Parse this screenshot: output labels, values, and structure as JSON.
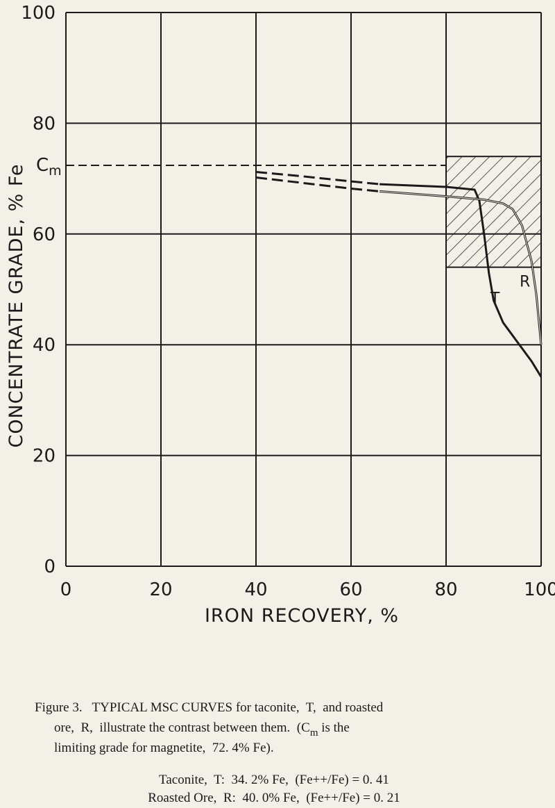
{
  "chart_data": {
    "type": "line",
    "x_label": "IRON RECOVERY, %",
    "y_label": "CONCENTRATE GRADE, % Fe",
    "xlim": [
      0,
      100
    ],
    "ylim": [
      0,
      100
    ],
    "xticks": [
      0,
      20,
      40,
      60,
      80,
      100
    ],
    "yticks": [
      0,
      20,
      40,
      60,
      80,
      100
    ],
    "grid": true,
    "color": "#1a1a1a",
    "cm_line": {
      "label": "C",
      "label_sub": "m",
      "value": 72.4,
      "x": [
        0,
        80
      ]
    },
    "hatched_region": {
      "x": [
        80,
        100
      ],
      "y": [
        54,
        74
      ]
    },
    "series": [
      {
        "label": "T",
        "label_pos": [
          90.3,
          47.5
        ],
        "segments": [
          {
            "style": "dashed",
            "x": [
              40,
              50,
              60,
              66
            ],
            "y": [
              71.2,
              70.4,
              69.5,
              69
            ]
          },
          {
            "style": "solid",
            "x": [
              66,
              80,
              86,
              87,
              88,
              89,
              90,
              92,
              95,
              98,
              100
            ],
            "y": [
              69,
              68.5,
              68,
              66,
              60,
              53,
              48,
              44,
              40.5,
              37,
              34.2
            ]
          }
        ]
      },
      {
        "label": "R",
        "label_pos": [
          96.6,
          50.5
        ],
        "segments": [
          {
            "style": "dashed",
            "x": [
              40,
              50,
              60,
              66
            ],
            "y": [
              70.2,
              69.2,
              68.2,
              67.7
            ]
          },
          {
            "style": "solid",
            "x": [
              66,
              80,
              88,
              92,
              94,
              96,
              98,
              99,
              100
            ],
            "y": [
              67.7,
              66.8,
              66.2,
              65.5,
              64.5,
              61.5,
              55,
              49,
              40
            ]
          }
        ]
      }
    ]
  },
  "caption": [
    [
      {
        "text": "Figure 3.   TYPICAL MSC CURVES for taconite,  T,  and roasted"
      }
    ],
    [
      {
        "text": "ore,  R,  illustrate the contrast between them.  (C"
      },
      {
        "text": "m",
        "sub": true
      },
      {
        "text": " is the"
      }
    ],
    [
      {
        "text": "limiting grade for magnetite,  72. 4% Fe)."
      }
    ]
  ],
  "notes": [
    "Taconite,  T:  34. 2% Fe,  (Fe++/Fe) = 0. 41",
    "Roasted Ore,  R:  40. 0% Fe,  (Fe++/Fe) = 0. 21"
  ]
}
